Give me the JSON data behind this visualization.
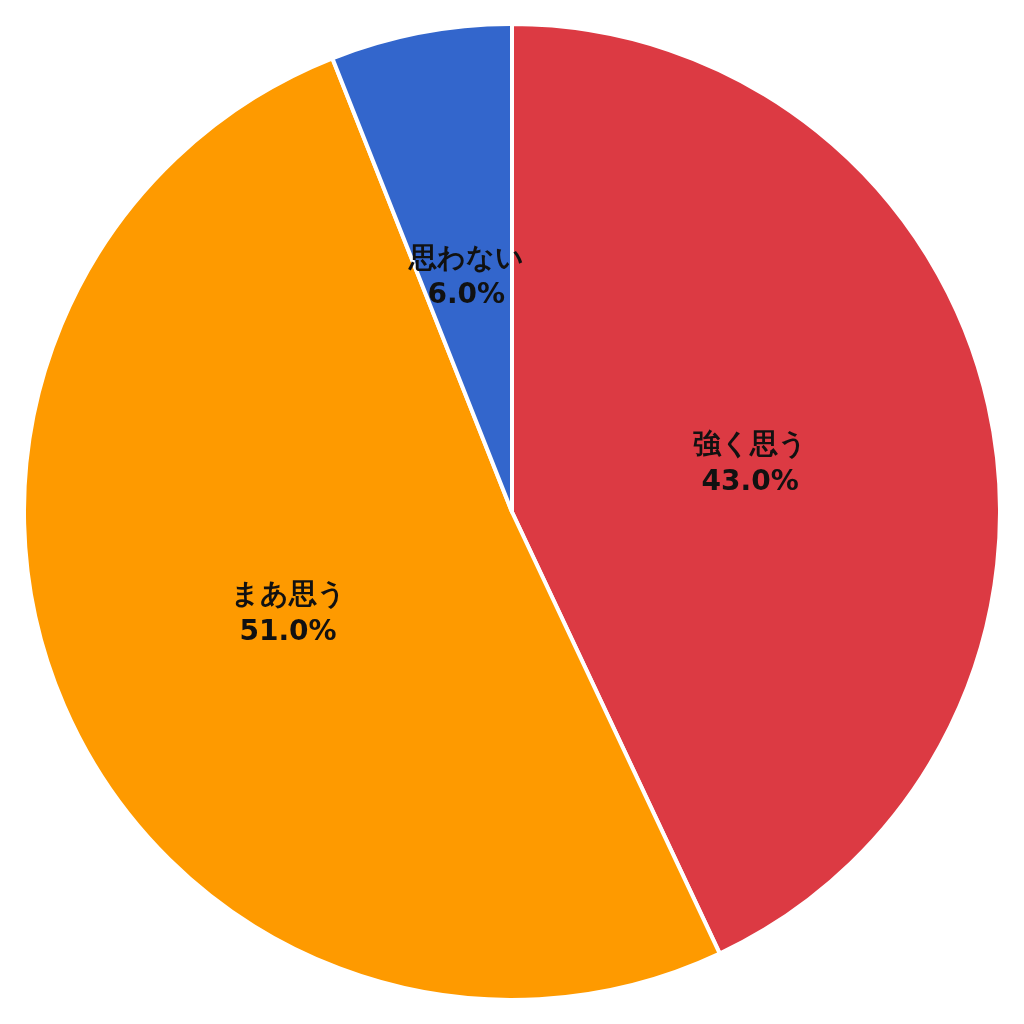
{
  "chart_data": {
    "type": "pie",
    "categories": [
      "強く思う",
      "まあ思う",
      "思わない"
    ],
    "values": [
      43.0,
      51.0,
      6.0
    ],
    "colors": [
      "#dc3a43",
      "#fe9a00",
      "#3366cc"
    ],
    "value_labels": [
      "43.0%",
      "51.0%",
      "6.0%"
    ],
    "legend": false
  }
}
